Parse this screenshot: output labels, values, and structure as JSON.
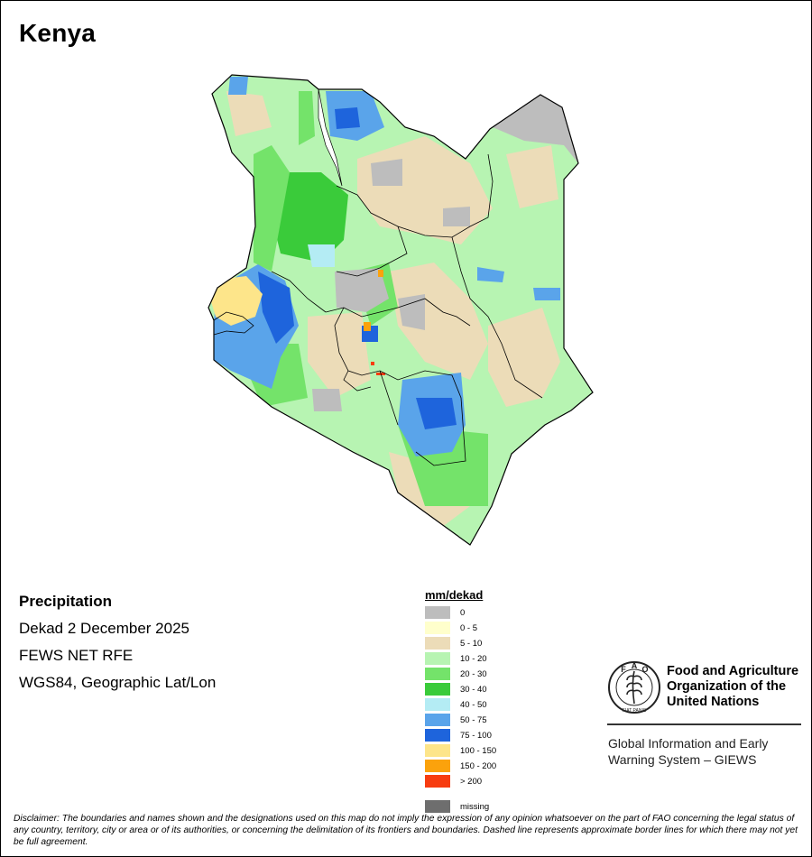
{
  "map": {
    "title": "Kenya",
    "country": "Kenya"
  },
  "info": {
    "title": "Precipitation",
    "period": "Dekad 2 December 2025",
    "source": "FEWS NET RFE",
    "projection": "WGS84, Geographic Lat/Lon"
  },
  "legend": {
    "title": "mm/dekad",
    "items": [
      {
        "label": "0",
        "color": "#bdbdbd"
      },
      {
        "label": "0 - 5",
        "color": "#ffffcc"
      },
      {
        "label": "5 - 10",
        "color": "#ecdcb8"
      },
      {
        "label": "10 - 20",
        "color": "#b7f4b2"
      },
      {
        "label": "20 - 30",
        "color": "#74e36a"
      },
      {
        "label": "30 - 40",
        "color": "#3acb3a"
      },
      {
        "label": "40 - 50",
        "color": "#b4ecf4"
      },
      {
        "label": "50 - 75",
        "color": "#5aa4ea"
      },
      {
        "label": "75 - 100",
        "color": "#1e64dc"
      },
      {
        "label": "100 - 150",
        "color": "#fde58a"
      },
      {
        "label": "150 - 200",
        "color": "#fba20c"
      },
      {
        "label": "> 200",
        "color": "#f73c10"
      },
      {
        "label": "missing",
        "color": "#6e6e6e"
      }
    ]
  },
  "organization": {
    "logo_letters": "FAO",
    "logo_motto": "FIAT PANIS",
    "name": "Food and Agriculture Organization of the United Nations",
    "program": "Global Information and Early Warning System – GIEWS"
  },
  "disclaimer": "Disclaimer: The boundaries and names shown and the designations used on this map do not imply the expression of any opinion whatsoever on the part of FAO concerning the legal status of any country, territory, city or area or of its authorities, or concerning the delimitation of its frontiers and boundaries. Dashed line represents approximate border lines for which there may not yet be full agreement.",
  "colors": {
    "lake": "#b4ecf4",
    "border": "#000000"
  }
}
